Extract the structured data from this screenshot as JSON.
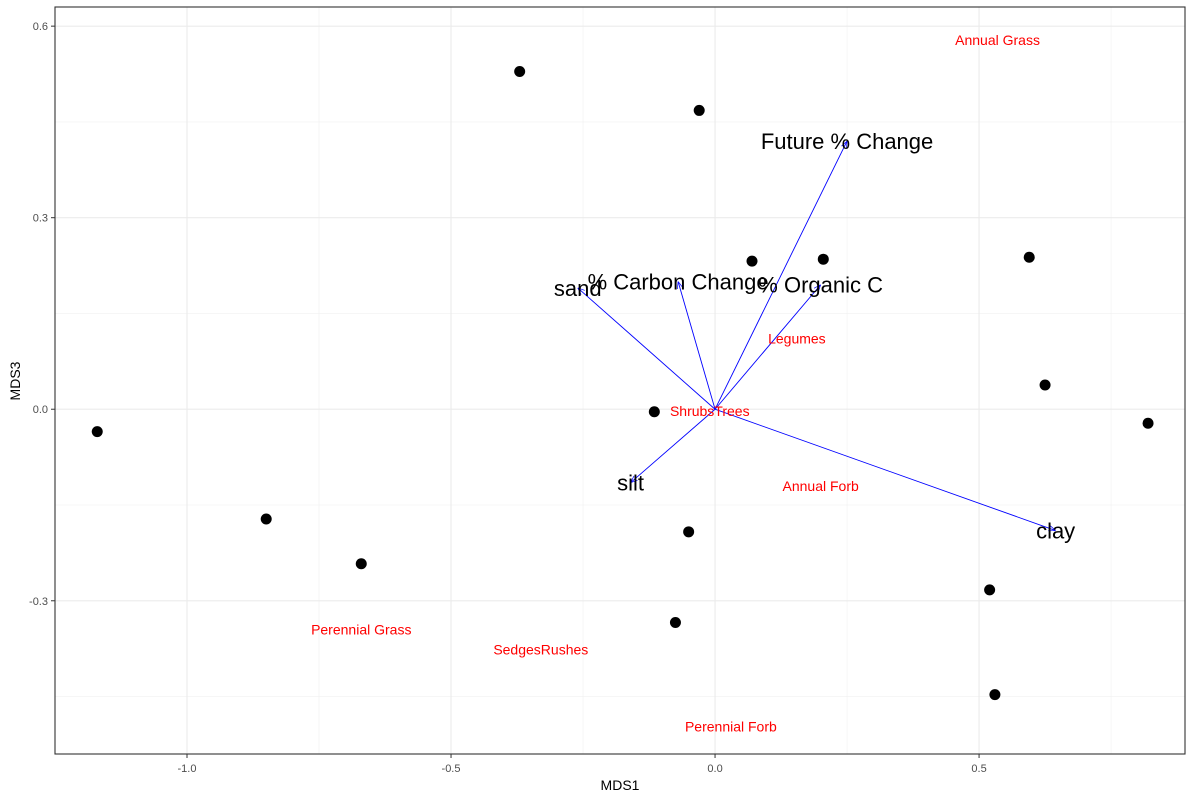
{
  "chart_data": {
    "type": "scatter",
    "title": "",
    "xlabel": "MDS1",
    "ylabel": "MDS3",
    "xlim": [
      -1.25,
      0.89
    ],
    "ylim": [
      -0.54,
      0.63
    ],
    "x_ticks": [
      -1.0,
      -0.5,
      0.0,
      0.5
    ],
    "x_tick_labels": [
      "-1.0",
      "-0.5",
      "0.0",
      "0.5"
    ],
    "y_ticks": [
      -0.3,
      0.0,
      0.3,
      0.6
    ],
    "y_tick_labels": [
      "-0.3",
      "0.0",
      "0.3",
      "0.6"
    ],
    "grid": true,
    "points": [
      {
        "x": -1.17,
        "y": -0.035
      },
      {
        "x": -0.85,
        "y": -0.172
      },
      {
        "x": -0.67,
        "y": -0.242
      },
      {
        "x": -0.37,
        "y": 0.529
      },
      {
        "x": -0.03,
        "y": 0.468
      },
      {
        "x": 0.07,
        "y": 0.232
      },
      {
        "x": 0.205,
        "y": 0.235
      },
      {
        "x": 0.595,
        "y": 0.238
      },
      {
        "x": 0.625,
        "y": 0.038
      },
      {
        "x": 0.82,
        "y": -0.022
      },
      {
        "x": -0.115,
        "y": -0.004
      },
      {
        "x": -0.05,
        "y": -0.192
      },
      {
        "x": 0.52,
        "y": -0.283
      },
      {
        "x": -0.075,
        "y": -0.334
      },
      {
        "x": 0.53,
        "y": -0.447
      }
    ],
    "vectors": [
      {
        "label": "Future % Change",
        "x": 0.25,
        "y": 0.42
      },
      {
        "label": "% Carbon Change",
        "x": -0.07,
        "y": 0.2
      },
      {
        "label": "% Organic C",
        "x": 0.2,
        "y": 0.195
      },
      {
        "label": "sand",
        "x": -0.26,
        "y": 0.19
      },
      {
        "label": "silt",
        "x": -0.16,
        "y": -0.115
      },
      {
        "label": "clay",
        "x": 0.645,
        "y": -0.19
      }
    ],
    "vector_color": "#0000ff",
    "species": [
      {
        "label": "Annual Grass",
        "x": 0.535,
        "y": 0.578
      },
      {
        "label": "Legumes",
        "x": 0.155,
        "y": 0.111
      },
      {
        "label": "ShrubsTrees",
        "x": -0.01,
        "y": -0.003
      },
      {
        "label": "Annual Forb",
        "x": 0.2,
        "y": -0.12
      },
      {
        "label": "Perennial Grass",
        "x": -0.67,
        "y": -0.345
      },
      {
        "label": "SedgesRushes",
        "x": -0.33,
        "y": -0.376
      },
      {
        "label": "Perennial Forb",
        "x": 0.03,
        "y": -0.497
      }
    ],
    "species_color": "#ff0000",
    "point_color": "#000000"
  }
}
